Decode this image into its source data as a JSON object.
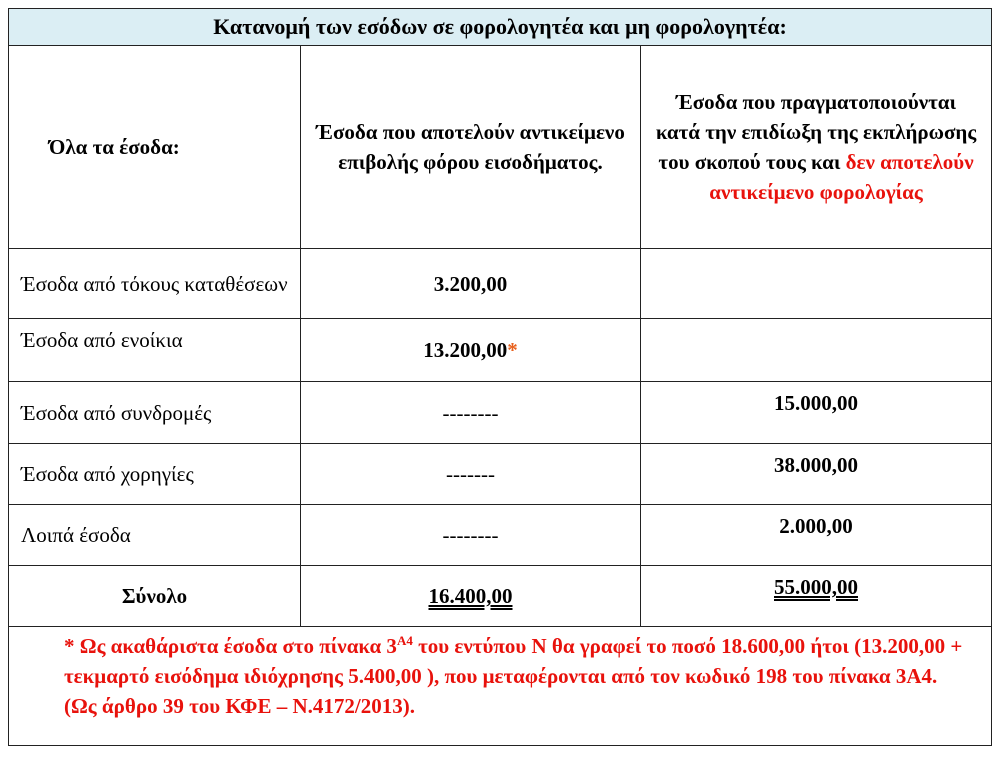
{
  "title": "Κατανομή των εσόδων σε φορολογητέα και μη φορολογητέα:",
  "headers": {
    "col1": "Όλα τα έσοδα:",
    "col2": "Έσοδα που αποτελούν αντικείμενο επιβολής φόρου εισοδήματος.",
    "col3_black": "Έσοδα που πραγματοποιούνται κατά την επιδίωξη της εκπλήρωσης του σκοπού τους και",
    "col3_red": "δεν αποτελούν αντικείμενο φορολογίας"
  },
  "rows": [
    {
      "label": "Έσοδα από τόκους καταθέσεων",
      "taxable": "3.200,00",
      "non_taxable": ""
    },
    {
      "label": "Έσοδα από ενοίκια",
      "taxable": "13.200,00",
      "taxable_mark": "*",
      "non_taxable": ""
    },
    {
      "label": "Έσοδα από συνδρομές",
      "taxable": "--------",
      "non_taxable": "15.000,00"
    },
    {
      "label": "Έσοδα από χορηγίες",
      "taxable": "-------",
      "non_taxable": "38.000,00"
    },
    {
      "label": "Λοιπά έσοδα",
      "taxable": "--------",
      "non_taxable": "2.000,00"
    }
  ],
  "total": {
    "label": "Σύνολο",
    "taxable": "16.400,00",
    "non_taxable": "55.000,00"
  },
  "footnote": {
    "part1": "* Ως ακαθάριστα έσοδα στο πίνακα 3",
    "sup": "Α4",
    "part2": " του εντύπου Ν θα γραφεί το ποσό 18.600,00 ήτοι (13.200,00 + τεκμαρτό εισόδημα ιδιόχρησης 5.400,00 ), που μεταφέρονται από τον κωδικό 198 του πίνακα 3Α4. (Ως άρθρο 39 του ΚΦΕ – Ν.4172/2013)."
  },
  "colors": {
    "header_bg": "#dbeef4",
    "accent_red": "#e8120c"
  }
}
